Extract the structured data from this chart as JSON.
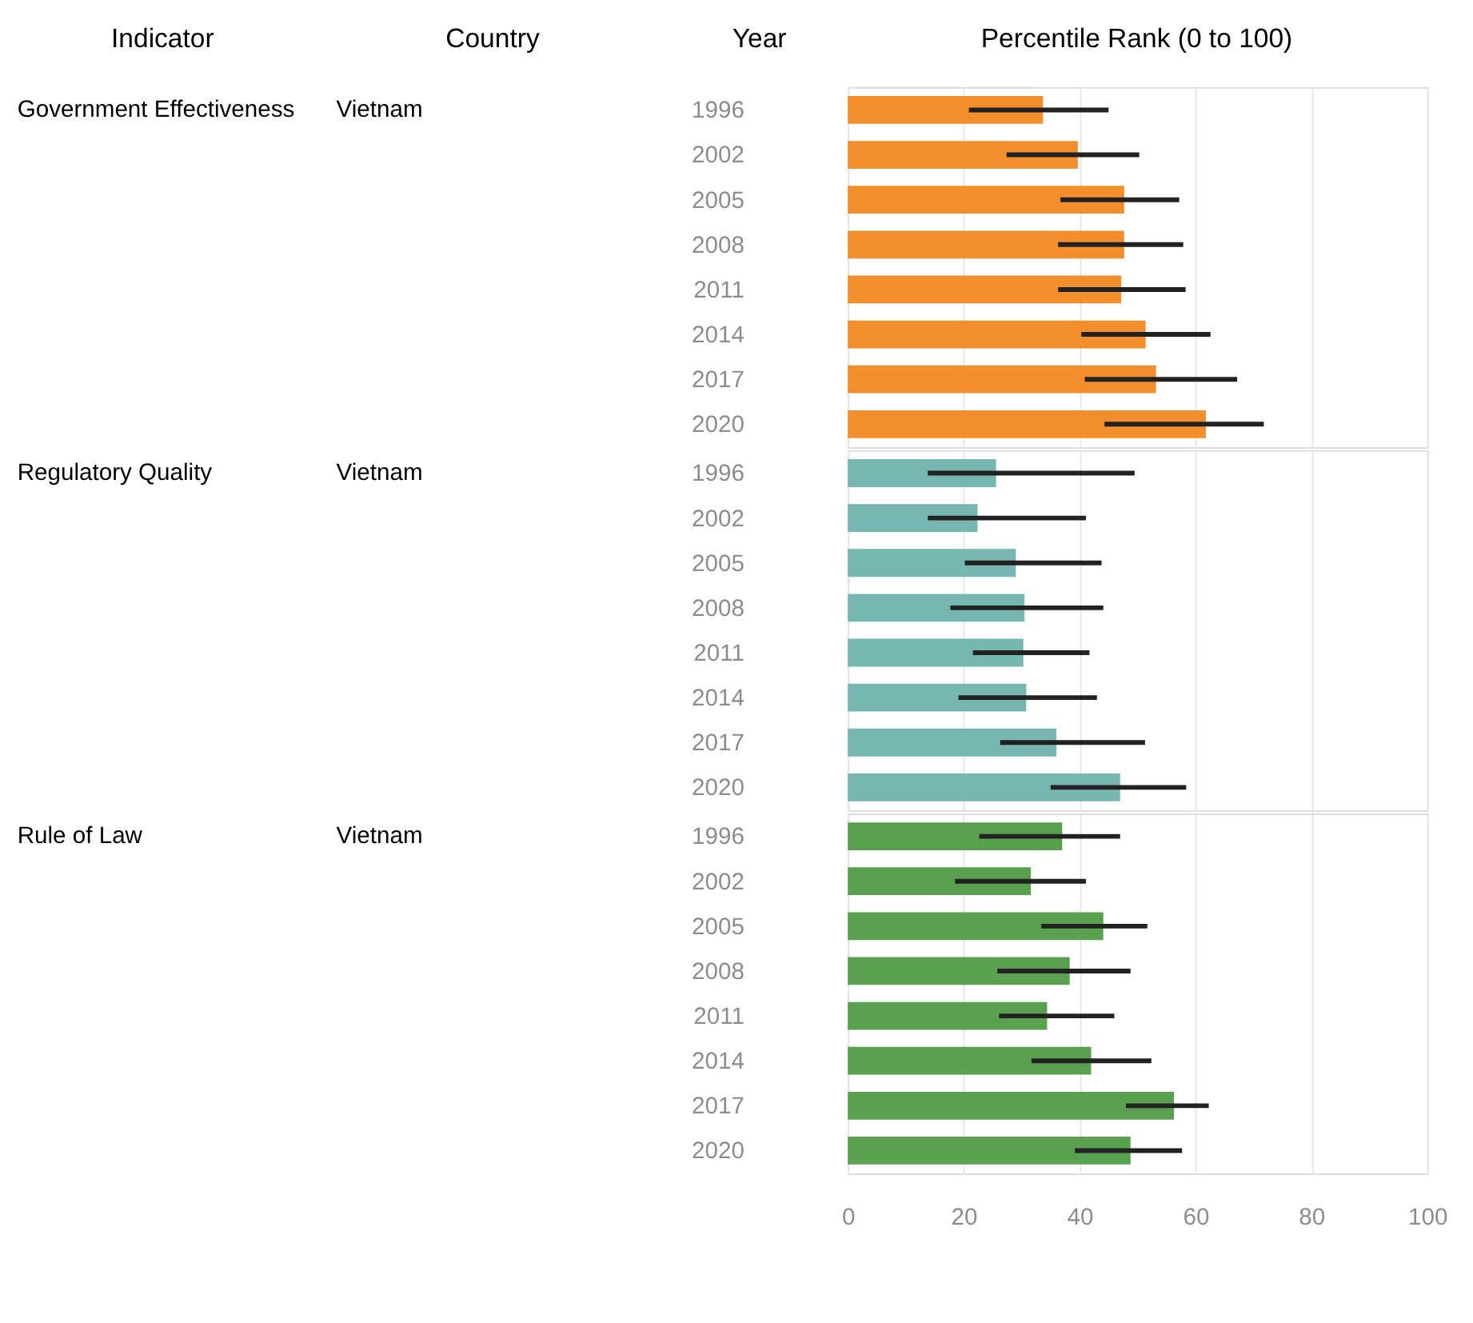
{
  "chart_data": [
    {
      "type": "bar",
      "orientation": "horizontal",
      "categories": [
        "1996",
        "2002",
        "2005",
        "2008",
        "2011",
        "2014",
        "2017",
        "2020"
      ],
      "series": [
        {
          "name": "Government Effectiveness",
          "color": "#f28e2b",
          "values": [
            33.7,
            39.7,
            47.7,
            47.7,
            47.2,
            51.4,
            53.2,
            61.8
          ],
          "errors": [
            [
              20.9,
              45.0
            ],
            [
              27.4,
              50.3
            ],
            [
              36.7,
              57.2
            ],
            [
              36.3,
              57.9
            ],
            [
              36.3,
              58.3
            ],
            [
              40.3,
              62.6
            ],
            [
              40.9,
              67.2
            ],
            [
              44.3,
              71.8
            ]
          ]
        }
      ],
      "annotations": [
        "Indicator",
        "Country",
        "Year",
        "Percentile Rank (0 to 100)",
        "Vietnam"
      ],
      "xlim": [
        0,
        100
      ],
      "xticks": [
        0,
        20,
        40,
        60,
        80,
        100
      ],
      "grid": "x",
      "legend": false,
      "tick_labels": "y"
    },
    {
      "type": "bar",
      "orientation": "horizontal",
      "categories": [
        "1996",
        "2002",
        "2005",
        "2008",
        "2011",
        "2014",
        "2017",
        "2020"
      ],
      "series": [
        {
          "name": "Regulatory Quality",
          "color": "#76b7b2",
          "values": [
            25.6,
            22.4,
            29.0,
            30.5,
            30.3,
            30.8,
            36.0,
            47.0
          ],
          "errors": [
            [
              13.8,
              49.5
            ],
            [
              13.8,
              41.1
            ],
            [
              20.2,
              43.8
            ],
            [
              17.7,
              44.1
            ],
            [
              21.6,
              41.7
            ],
            [
              19.1,
              43.0
            ],
            [
              26.3,
              51.3
            ],
            [
              35.0,
              58.4
            ]
          ]
        }
      ],
      "annotations": [
        "Vietnam"
      ],
      "xlim": [
        0,
        100
      ],
      "xticks": [
        0,
        20,
        40,
        60,
        80,
        100
      ],
      "grid": "x",
      "legend": false,
      "tick_labels": "y"
    },
    {
      "type": "bar",
      "orientation": "horizontal",
      "categories": [
        "1996",
        "2002",
        "2005",
        "2008",
        "2011",
        "2014",
        "2017",
        "2020"
      ],
      "series": [
        {
          "name": "Rule of Law",
          "color": "#59a14f",
          "values": [
            37.0,
            31.6,
            44.1,
            38.3,
            34.4,
            42.0,
            56.3,
            48.8
          ],
          "errors": [
            [
              22.7,
              47.0
            ],
            [
              18.5,
              41.1
            ],
            [
              33.4,
              51.7
            ],
            [
              25.8,
              48.8
            ],
            [
              26.1,
              46.0
            ],
            [
              31.7,
              52.4
            ],
            [
              48.0,
              62.3
            ],
            [
              39.2,
              57.7
            ]
          ]
        }
      ],
      "annotations": [
        "Vietnam"
      ],
      "xlim": [
        0,
        100
      ],
      "xticks": [
        0,
        20,
        40,
        60,
        80,
        100
      ],
      "grid": "x",
      "legend": false
    }
  ]
}
